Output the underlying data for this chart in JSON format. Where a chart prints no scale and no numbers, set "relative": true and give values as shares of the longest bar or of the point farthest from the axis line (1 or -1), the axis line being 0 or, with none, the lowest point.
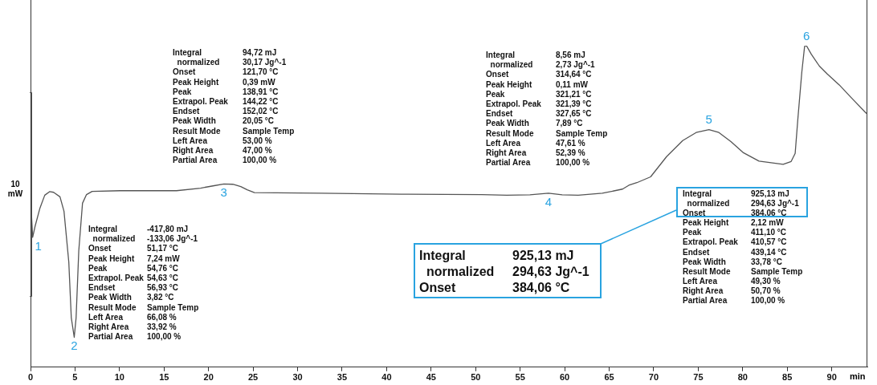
{
  "chart_data": {
    "type": "line",
    "relative": true,
    "xlabel": "min",
    "ylabel": "10 mW",
    "legend": false,
    "grid": false,
    "marker": "none",
    "line_style": "solid",
    "xlim": [
      0,
      94
    ],
    "xticks": [
      0,
      5,
      10,
      15,
      20,
      25,
      30,
      35,
      40,
      45,
      50,
      55,
      60,
      65,
      70,
      75,
      80,
      85,
      90
    ],
    "series": [
      {
        "color": "#555555",
        "x": [
          0,
          0.24,
          0.51,
          1.06,
          1.6,
          2.14,
          2.59,
          3.31,
          3.76,
          4.3,
          4.58,
          4.91,
          5.12,
          5.42,
          5.84,
          6.29,
          6.92,
          10.08,
          16.4,
          19.1,
          20.5,
          21.72,
          22.72,
          23.62,
          24.34,
          25.15,
          32.6,
          41.67,
          50.69,
          53.5,
          56.1,
          58.18,
          59.72,
          61.52,
          64.23,
          66.5,
          67.21,
          68.11,
          69.65,
          71.45,
          73.26,
          74.77,
          76.21,
          77.32,
          78.67,
          80.03,
          81.83,
          84.54,
          85.44,
          85.89,
          86.19,
          86.64,
          86.95,
          87.16,
          87.69,
          88.6,
          89.5,
          90.85,
          92.2,
          93.9
        ],
        "values": [
          0.532,
          0.404,
          0.438,
          0.495,
          0.535,
          0.546,
          0.544,
          0.53,
          0.485,
          0.327,
          0.154,
          0.093,
          0.154,
          0.362,
          0.51,
          0.537,
          0.547,
          0.549,
          0.549,
          0.557,
          0.564,
          0.57,
          0.569,
          0.562,
          0.552,
          0.543,
          0.541,
          0.538,
          0.537,
          0.535,
          0.536,
          0.541,
          0.536,
          0.535,
          0.541,
          0.554,
          0.566,
          0.574,
          0.592,
          0.655,
          0.705,
          0.73,
          0.739,
          0.73,
          0.702,
          0.668,
          0.641,
          0.631,
          0.64,
          0.665,
          0.771,
          0.919,
          0.998,
          1.0,
          0.974,
          0.937,
          0.912,
          0.878,
          0.838,
          0.789
        ]
      }
    ],
    "annotations": [
      {
        "text": "1",
        "x": 0.24,
        "y": 0.404
      },
      {
        "text": "2",
        "x": 4.91,
        "y": 0.093
      },
      {
        "text": "3",
        "x": 21.72,
        "y": 0.57
      },
      {
        "text": "4",
        "x": 58.18,
        "y": 0.541
      },
      {
        "text": "5",
        "x": 76.21,
        "y": 0.739
      },
      {
        "text": "6",
        "x": 87.16,
        "y": 1.0
      },
      "Integral\t94,72 mJ\n  normalized\t30,17 Jg^-1\nOnset\t121,70 °C\nPeak Height\t0,39 mW\nPeak\t138,91 °C\nExtrapol. Peak\t144,22 °C\nEndset\t152,02 °C\nPeak Width\t20,05 °C\nResult Mode\tSample Temp\nLeft Area\t53,00 %\nRight Area\t47,00 %\nPartial Area\t100,00 %",
      "Integral\t-417,80 mJ\n  normalized\t-133,06 Jg^-1\nOnset\t51,17 °C\nPeak Height\t7,24 mW\nPeak\t54,76 °C\nExtrapol. Peak\t54,63 °C\nEndset\t56,93 °C\nPeak Width\t3,82 °C\nResult Mode\tSample Temp\nLeft Area\t66,08 %\nRight Area\t33,92 %\nPartial Area\t100,00 %",
      "Integral\t8,56 mJ\n  normalized\t2,73 Jg^-1\nOnset\t314,64 °C\nPeak Height\t0,11 mW\nPeak\t321,21 °C\nExtrapol. Peak\t321,39 °C\nEndset\t327,65 °C\nPeak Width\t7,89 °C\nResult Mode\tSample Temp\nLeft Area\t47,61 %\nRight Area\t52,39 %\nPartial Area\t100,00 %",
      "Integral\t925,13 mJ\n  normalized\t294,63 Jg^-1\nOnset\t384,06 °C\nPeak Height\t2,12 mW\nPeak\t411,10 °C\nExtrapol. Peak\t410,57 °C\nEndset\t439,14 °C\nPeak Width\t33,78 °C\nResult Mode\tSample Temp\nLeft Area\t49,30 %\nRight Area\t50,70 %\nPartial Area\t100,00 %",
      "Integral\t925,13 mJ\n  normalized\t294,63 Jg^-1\nOnset\t384,06 °C"
    ]
  }
}
